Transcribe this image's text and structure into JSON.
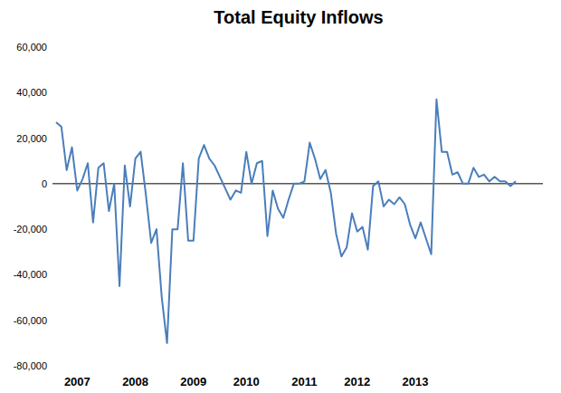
{
  "chart_data": {
    "type": "line",
    "title": "Total Equity Inflows",
    "categories": [
      null,
      null,
      null,
      null,
      "2007",
      null,
      null,
      null,
      null,
      null,
      null,
      null,
      null,
      null,
      null,
      "2008",
      null,
      null,
      null,
      null,
      null,
      null,
      null,
      null,
      null,
      null,
      "2009",
      null,
      null,
      null,
      null,
      null,
      null,
      null,
      null,
      null,
      "2010",
      null,
      null,
      null,
      null,
      null,
      null,
      null,
      null,
      null,
      null,
      "2011",
      null,
      null,
      null,
      null,
      null,
      null,
      null,
      null,
      null,
      "2012",
      null,
      null,
      null,
      null,
      null,
      null,
      null,
      null,
      null,
      null,
      "2013",
      null,
      null,
      null,
      null,
      null,
      null,
      null,
      null,
      null,
      null,
      null,
      null,
      null,
      null,
      null,
      null,
      null,
      null,
      null
    ],
    "values": [
      27000,
      25000,
      6000,
      16000,
      -3000,
      2000,
      9000,
      -17000,
      7000,
      9000,
      -12000,
      0,
      -45000,
      8000,
      -10000,
      11000,
      14000,
      -5000,
      -26000,
      -20000,
      -50000,
      -70000,
      -20000,
      -20000,
      9000,
      -25000,
      -25000,
      11000,
      17000,
      11000,
      8000,
      3000,
      -2000,
      -7000,
      -3000,
      -4000,
      14000,
      0,
      9000,
      10000,
      -23000,
      -3000,
      -11000,
      -15000,
      -7000,
      0,
      0,
      1000,
      18000,
      11000,
      2000,
      6000,
      -4000,
      -22000,
      -32000,
      -28000,
      -13000,
      -21000,
      -19000,
      -29000,
      -1000,
      1000,
      -10000,
      -7000,
      -9000,
      -6000,
      -9000,
      -18000,
      -24000,
      -17000,
      -24000,
      -31000,
      37000,
      14000,
      14000,
      4000,
      5000,
      0,
      0,
      7000,
      3000,
      4000,
      1000,
      3000,
      1000,
      1000,
      -1000,
      1000
    ],
    "color": "#4a7ebb",
    "ylim": [
      -80000,
      60000
    ],
    "yticks": [
      {
        "value": -80000,
        "label": "-80,000"
      },
      {
        "value": -60000,
        "label": "-60,000"
      },
      {
        "value": -40000,
        "label": "-40,000"
      },
      {
        "value": -20000,
        "label": "-20,000"
      },
      0,
      {
        "value": 20000,
        "label": "20,000"
      },
      {
        "value": 40000,
        "label": "40,000"
      },
      {
        "value": 60000,
        "label": "60,000"
      }
    ],
    "grid": false
  }
}
